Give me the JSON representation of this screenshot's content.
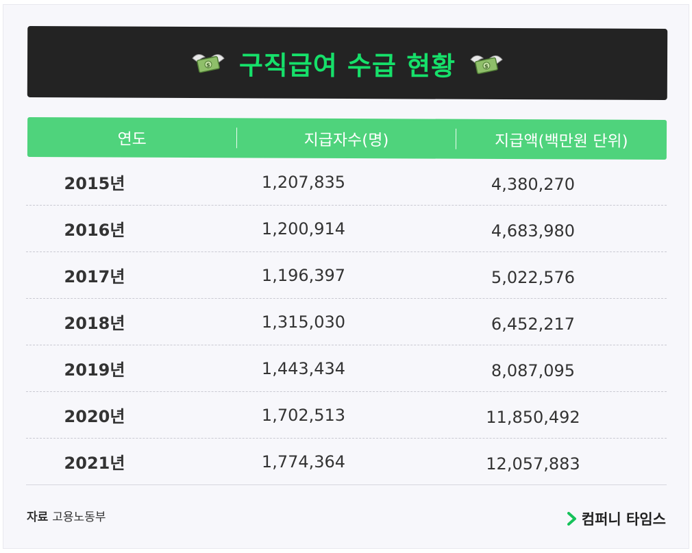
{
  "title": {
    "text": "구직급여 수급 현황",
    "left_icon": "flying-money-icon",
    "right_icon": "flying-money-icon",
    "color": "#16e06a",
    "background": "#232323"
  },
  "table": {
    "header_color": "#4fd37c",
    "headers": [
      "연도",
      "지급자수(명)",
      "지급액(백만원 단위)"
    ],
    "rows": [
      {
        "year": "2015년",
        "recipients": "1,207,835",
        "amount": "4,380,270"
      },
      {
        "year": "2016년",
        "recipients": "1,200,914",
        "amount": "4,683,980"
      },
      {
        "year": "2017년",
        "recipients": "1,196,397",
        "amount": "5,022,576"
      },
      {
        "year": "2018년",
        "recipients": "1,315,030",
        "amount": "6,452,217"
      },
      {
        "year": "2019년",
        "recipients": "1,443,434",
        "amount": "8,087,095"
      },
      {
        "year": "2020년",
        "recipients": "1,702,513",
        "amount": "11,850,492"
      },
      {
        "year": "2021년",
        "recipients": "1,774,364",
        "amount": "12,057,883"
      }
    ]
  },
  "footer": {
    "source_label": "자료",
    "source_value": "고용노동부",
    "brand_name": "컴퍼니 타임스",
    "brand_icon": "chevron-right-icon",
    "brand_color": "#16c25a"
  }
}
